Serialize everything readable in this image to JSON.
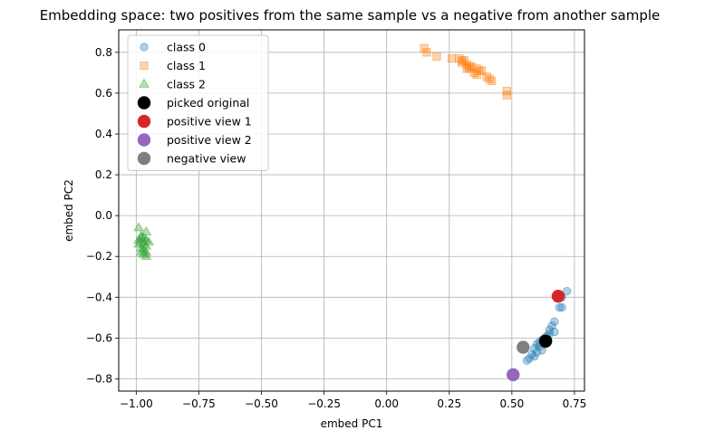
{
  "chart_data": {
    "type": "scatter",
    "title": "Embedding space: two positives from the same sample vs a negative from another sample",
    "xlabel": "embed PC1",
    "ylabel": "embed PC2",
    "xlim": [
      -1.07,
      0.79
    ],
    "ylim": [
      -0.86,
      0.91
    ],
    "xticks": [
      -1.0,
      -0.75,
      -0.5,
      -0.25,
      0.0,
      0.25,
      0.5,
      0.75
    ],
    "xtick_labels": [
      "−1.00",
      "−0.75",
      "−0.50",
      "−0.25",
      "0.00",
      "0.25",
      "0.50",
      "0.75"
    ],
    "yticks": [
      -0.8,
      -0.6,
      -0.4,
      -0.2,
      0.0,
      0.2,
      0.4,
      0.6,
      0.8
    ],
    "ytick_labels": [
      "−0.8",
      "−0.6",
      "−0.4",
      "−0.2",
      "0.0",
      "0.2",
      "0.4",
      "0.6",
      "0.8"
    ],
    "grid": true,
    "legend_position": "top-left",
    "series": [
      {
        "name": "class 0",
        "marker": "circle",
        "color": "#1f77b4",
        "opacity": 0.35,
        "points": [
          [
            0.72,
            -0.37
          ],
          [
            0.7,
            -0.4
          ],
          [
            0.69,
            -0.45
          ],
          [
            0.7,
            -0.45
          ],
          [
            0.67,
            -0.52
          ],
          [
            0.66,
            -0.54
          ],
          [
            0.65,
            -0.56
          ],
          [
            0.67,
            -0.57
          ],
          [
            0.64,
            -0.59
          ],
          [
            0.63,
            -0.6
          ],
          [
            0.62,
            -0.61
          ],
          [
            0.61,
            -0.62
          ],
          [
            0.6,
            -0.63
          ],
          [
            0.61,
            -0.64
          ],
          [
            0.59,
            -0.65
          ],
          [
            0.62,
            -0.66
          ],
          [
            0.6,
            -0.67
          ],
          [
            0.58,
            -0.68
          ],
          [
            0.59,
            -0.69
          ],
          [
            0.57,
            -0.7
          ],
          [
            0.56,
            -0.71
          ],
          [
            0.65,
            -0.58
          ],
          [
            0.63,
            -0.63
          ],
          [
            0.64,
            -0.61
          ]
        ]
      },
      {
        "name": "class 1",
        "marker": "square",
        "color": "#ff7f0e",
        "opacity": 0.35,
        "points": [
          [
            0.15,
            0.82
          ],
          [
            0.16,
            0.8
          ],
          [
            0.2,
            0.78
          ],
          [
            0.26,
            0.77
          ],
          [
            0.29,
            0.77
          ],
          [
            0.3,
            0.76
          ],
          [
            0.31,
            0.76
          ],
          [
            0.3,
            0.75
          ],
          [
            0.32,
            0.74
          ],
          [
            0.33,
            0.73
          ],
          [
            0.34,
            0.73
          ],
          [
            0.33,
            0.72
          ],
          [
            0.36,
            0.72
          ],
          [
            0.37,
            0.71
          ],
          [
            0.35,
            0.7
          ],
          [
            0.38,
            0.71
          ],
          [
            0.4,
            0.68
          ],
          [
            0.42,
            0.66
          ],
          [
            0.41,
            0.67
          ],
          [
            0.48,
            0.61
          ],
          [
            0.48,
            0.59
          ],
          [
            0.36,
            0.69
          ],
          [
            0.32,
            0.72
          ]
        ]
      },
      {
        "name": "class 2",
        "marker": "triangle",
        "color": "#2ca02c",
        "opacity": 0.35,
        "points": [
          [
            -0.99,
            -0.06
          ],
          [
            -0.96,
            -0.08
          ],
          [
            -0.98,
            -0.1
          ],
          [
            -0.97,
            -0.11
          ],
          [
            -0.99,
            -0.12
          ],
          [
            -0.96,
            -0.12
          ],
          [
            -0.98,
            -0.13
          ],
          [
            -0.95,
            -0.13
          ],
          [
            -0.97,
            -0.14
          ],
          [
            -0.99,
            -0.14
          ],
          [
            -0.96,
            -0.15
          ],
          [
            -0.98,
            -0.16
          ],
          [
            -0.97,
            -0.17
          ],
          [
            -0.96,
            -0.18
          ],
          [
            -0.98,
            -0.18
          ],
          [
            -0.97,
            -0.19
          ],
          [
            -0.96,
            -0.2
          ],
          [
            -0.98,
            -0.11
          ]
        ]
      },
      {
        "name": "picked original",
        "marker": "circle-large",
        "color": "#000000",
        "opacity": 1.0,
        "points": [
          [
            0.635,
            -0.615
          ]
        ]
      },
      {
        "name": "positive view 1",
        "marker": "circle-large",
        "color": "#d62728",
        "opacity": 1.0,
        "points": [
          [
            0.685,
            -0.395
          ]
        ]
      },
      {
        "name": "positive view 2",
        "marker": "circle-large",
        "color": "#9467bd",
        "opacity": 1.0,
        "points": [
          [
            0.505,
            -0.78
          ]
        ]
      },
      {
        "name": "negative view",
        "marker": "circle-large",
        "color": "#7f7f7f",
        "opacity": 1.0,
        "points": [
          [
            0.545,
            -0.645
          ]
        ]
      }
    ]
  }
}
